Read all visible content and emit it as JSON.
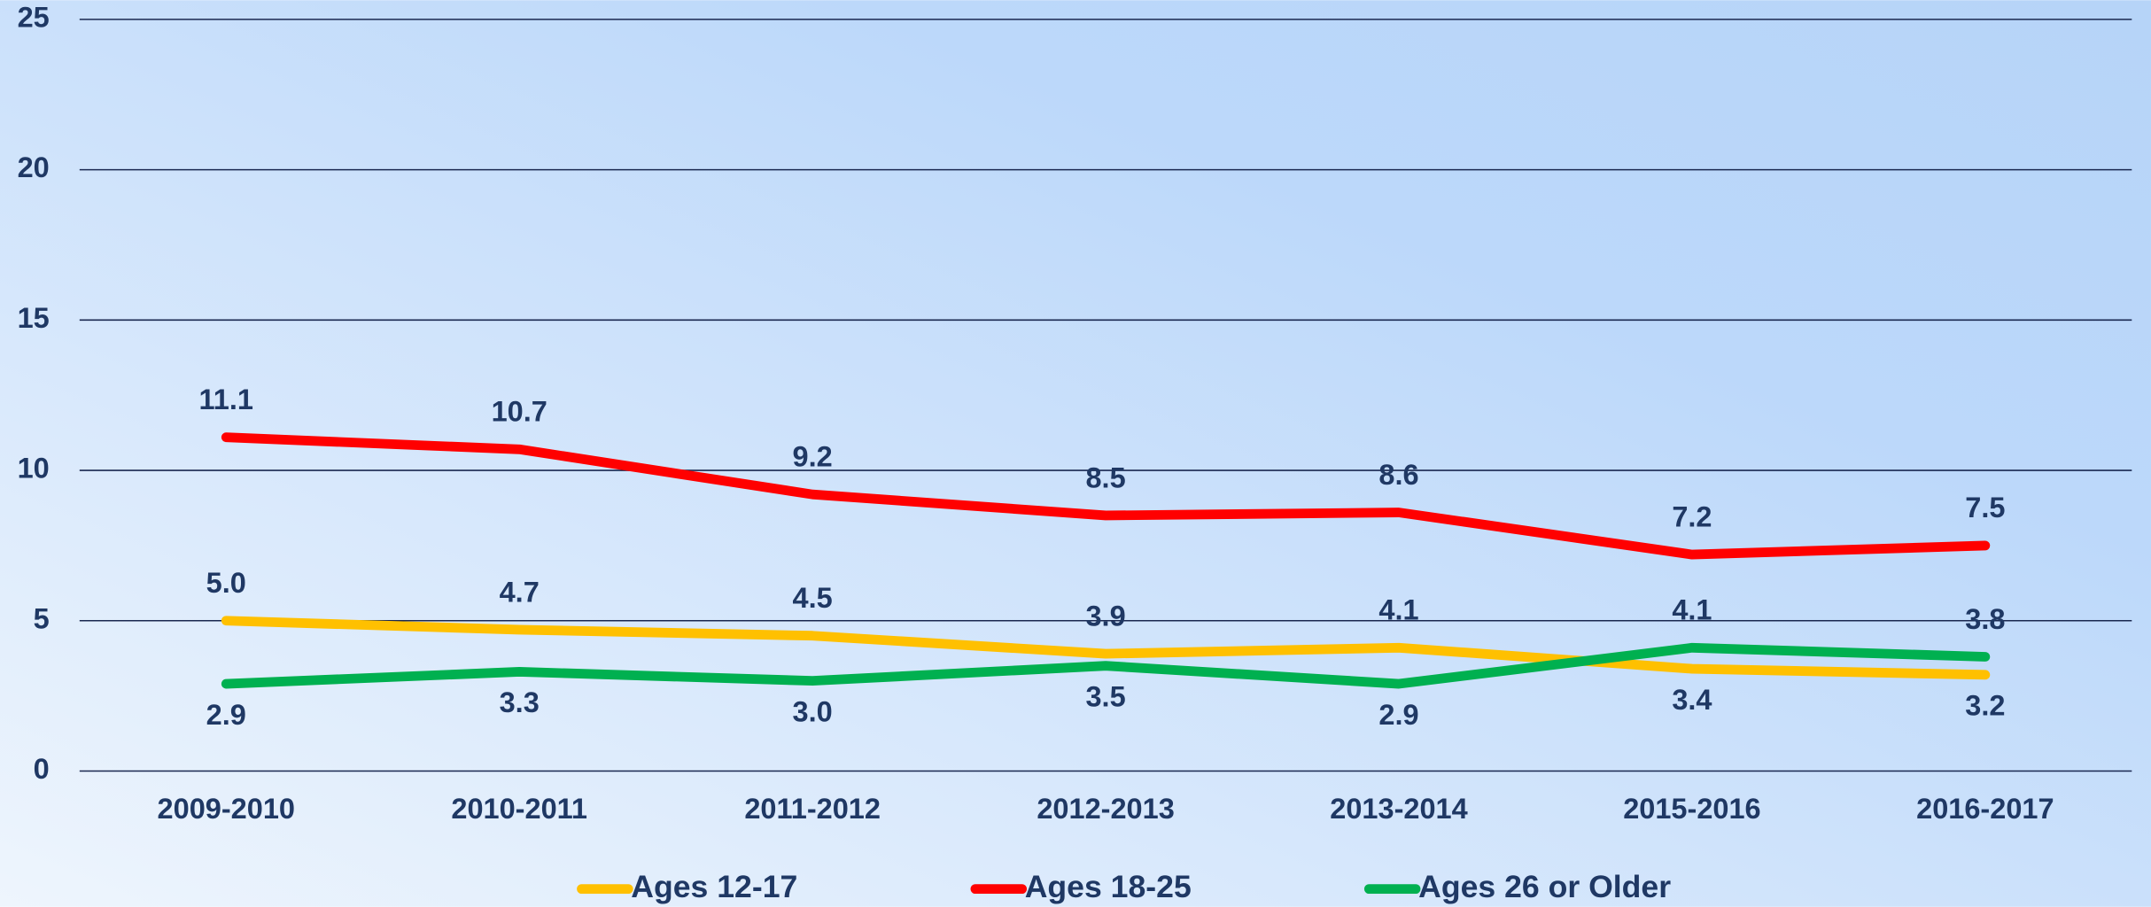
{
  "chart_data": {
    "type": "line",
    "categories": [
      "2009-2010",
      "2010-2011",
      "2011-2012",
      "2012-2013",
      "2013-2014",
      "2015-2016",
      "2016-2017"
    ],
    "series": [
      {
        "name": "Ages 12-17",
        "color": "#FFC000",
        "values": [
          5.0,
          4.7,
          4.5,
          3.9,
          4.1,
          3.4,
          3.2
        ],
        "value_labels": [
          "5.0",
          "4.7",
          "4.5",
          "3.9",
          "4.1",
          "3.4",
          "3.2"
        ]
      },
      {
        "name": "Ages 18-25",
        "color": "#FF0000",
        "values": [
          11.1,
          10.7,
          9.2,
          8.5,
          8.6,
          7.2,
          7.5
        ],
        "value_labels": [
          "11.1",
          "10.7",
          "9.2",
          "8.5",
          "8.6",
          "7.2",
          "7.5"
        ]
      },
      {
        "name": "Ages 26 or Older",
        "color": "#00B050",
        "values": [
          2.9,
          3.3,
          3.0,
          3.5,
          2.9,
          4.1,
          3.8
        ],
        "value_labels": [
          "2.9",
          "3.3",
          "3.0",
          "3.5",
          "2.9",
          "4.1",
          "3.8"
        ]
      }
    ],
    "ylim": [
      0,
      25
    ],
    "yticks": [
      0,
      5,
      10,
      15,
      20,
      25
    ],
    "grid": true,
    "legend": "bottom"
  }
}
